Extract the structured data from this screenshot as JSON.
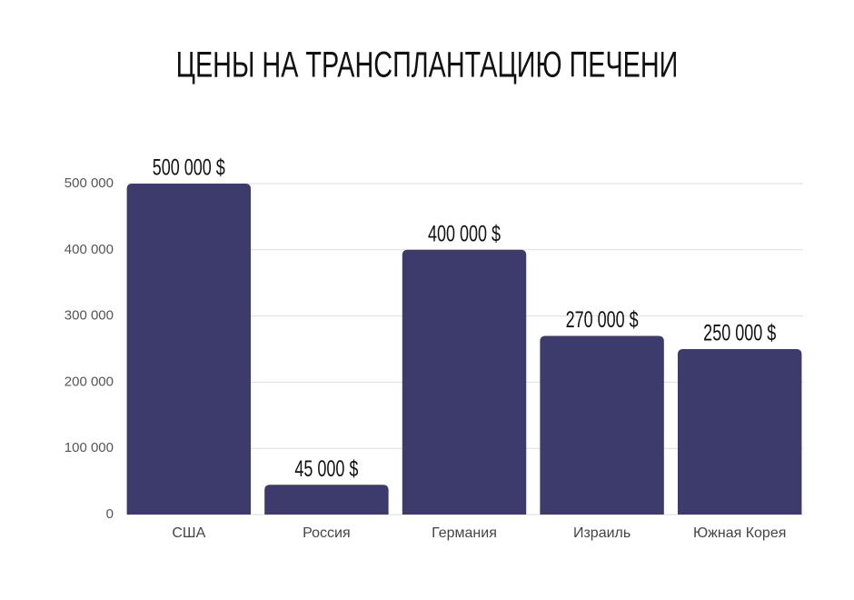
{
  "chart_data": {
    "type": "bar",
    "title": "ЦЕНЫ НА ТРАНСПЛАНТАЦИЮ ПЕЧЕНИ",
    "categories": [
      "США",
      "Россия",
      "Германия",
      "Израиль",
      "Южная Корея"
    ],
    "values": [
      500000,
      45000,
      400000,
      270000,
      250000
    ],
    "value_labels": [
      "500 000 $",
      "45 000 $",
      "400 000 $",
      "270 000 $",
      "250 000 $"
    ],
    "color": "#3d3b6b",
    "ylim": [
      0,
      500000
    ],
    "yticks": [
      0,
      {
        "value": 100000,
        "label": "100 000"
      },
      {
        "value": 200000,
        "label": "200 000"
      },
      {
        "value": 300000,
        "label": "300 000"
      },
      {
        "value": 400000,
        "label": "400 000"
      },
      {
        "value": 500000,
        "label": "500 000"
      }
    ],
    "grid": true
  }
}
